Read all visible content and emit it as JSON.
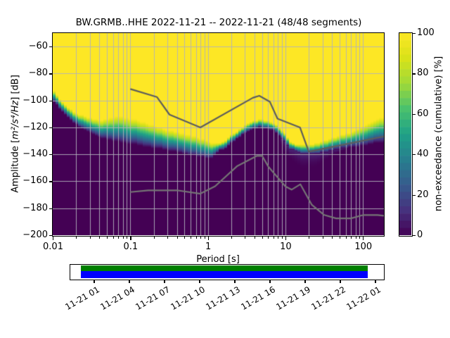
{
  "title": "BW.GRMB..HHE   2022-11-21 -- 2022-11-21  (48/48 segments)",
  "axes": {
    "xlabel": "Period [s]",
    "ylabel_prefix": "Amplitude [",
    "ylabel_math": "m²/s⁴/Hz",
    "ylabel_suffix": "] [dB]",
    "x_tick_labels": [
      "0.01",
      "0.1",
      "1",
      "10",
      "100"
    ],
    "y_tick_labels": [
      "−60",
      "−80",
      "−100",
      "−120",
      "−140",
      "−160",
      "−180",
      "−200"
    ]
  },
  "colorbar": {
    "label": "non-exceedance (cumulative) [%]",
    "tick_labels": [
      "0",
      "20",
      "40",
      "60",
      "80",
      "100"
    ]
  },
  "timeline": {
    "tick_labels": [
      "11-21 01",
      "11-21 04",
      "11-21 07",
      "11-21 10",
      "11-21 13",
      "11-21 16",
      "11-21 19",
      "11-21 22",
      "11-22 01"
    ],
    "green_color": "#008000",
    "blue_color": "#0000ff"
  },
  "chart_data": {
    "type": "heatmap",
    "title": "BW.GRMB..HHE   2022-11-21 -- 2022-11-21  (48/48 segments)",
    "xlabel": "Period [s]",
    "ylabel": "Amplitude [m²/s⁴/Hz] [dB]",
    "colorbar_label": "non-exceedance (cumulative) [%]",
    "x_scale": "log",
    "xlim": [
      0.01,
      186
    ],
    "ylim": [
      -200,
      -50
    ],
    "value_range_percent": [
      0,
      100
    ],
    "x_major_ticks": [
      0.01,
      0.1,
      1,
      10,
      100
    ],
    "y_major_ticks": [
      -60,
      -80,
      -100,
      -120,
      -140,
      -160,
      -180,
      -200
    ],
    "colorbar_ticks": [
      0,
      20,
      40,
      60,
      80,
      100
    ],
    "grid": true,
    "grid_color": "rgba(177,177,186,0.9)",
    "colormap_viridis_stops": [
      "#440154",
      "#46327e",
      "#365c8d",
      "#277f8e",
      "#1fa187",
      "#4ac16d",
      "#a0da39",
      "#d8e219",
      "#fde725"
    ],
    "yellow": "#fde725",
    "dark": "#440154",
    "cumulative_boundary": {
      "comment": "per period: dB where non-exceedance leaves 100% (top) and reaches 0% (bottom)",
      "periods": [
        0.01,
        0.0123,
        0.0152,
        0.0187,
        0.0245,
        0.035,
        0.0431,
        0.0532,
        0.0683,
        0.0895,
        0.11,
        0.136,
        0.167,
        0.206,
        0.254,
        0.313,
        0.428,
        0.585,
        0.8,
        1.1,
        1.35,
        1.67,
        2.05,
        2.52,
        3.1,
        3.82,
        4.71,
        5.8,
        7.15,
        8.27,
        9.79,
        11.3,
        13.4,
        16.6,
        19.6,
        24.2,
        29.8,
        38.4,
        49.4,
        64.8,
        88.6,
        121,
        150,
        186
      ],
      "top_db": [
        -91.8,
        -98.6,
        -104.3,
        -108.5,
        -111.1,
        -113.8,
        -114.8,
        -113.2,
        -111.7,
        -112.7,
        -113.8,
        -115.3,
        -116.9,
        -119.0,
        -120.6,
        -122.1,
        -123.7,
        -125.8,
        -127.9,
        -131.0,
        -132.0,
        -129.4,
        -125.3,
        -121.6,
        -118.0,
        -115.5,
        -113.8,
        -114.6,
        -117.0,
        -120.0,
        -124.2,
        -129.9,
        -132.0,
        -132.8,
        -133.1,
        -131.8,
        -130.2,
        -128.1,
        -125.8,
        -124.2,
        -121.1,
        -116.9,
        -113.8,
        -112.2
      ],
      "bottom_db": [
        -99.6,
        -105.9,
        -112.2,
        -116.9,
        -121.6,
        -125.8,
        -127.9,
        -129.4,
        -130.8,
        -132.0,
        -132.6,
        -133.6,
        -134.7,
        -135.7,
        -136.2,
        -137.6,
        -138.6,
        -140.9,
        -142.0,
        -143.6,
        -137.8,
        -135.7,
        -131.5,
        -127.4,
        -124.0,
        -121.5,
        -120.4,
        -121.0,
        -122.8,
        -126.0,
        -130.5,
        -136.2,
        -137.3,
        -139.7,
        -140.4,
        -140.2,
        -139.1,
        -137.8,
        -136.2,
        -135.2,
        -134.4,
        -132.6,
        -131.5,
        -131.0
      ],
      "tail_periods": [
        8.3,
        9.8,
        13.4,
        16.6,
        24.2,
        29.8,
        38.4,
        49.4,
        60
      ],
      "tail_db": [
        -128,
        -141,
        -148,
        -152,
        -151,
        -147,
        -142,
        -138.5,
        -136
      ]
    },
    "noise_models": {
      "high_noise_model": {
        "color": "#5d5d5d",
        "periods": [
          0.1,
          0.22,
          0.32,
          0.8,
          3.8,
          4.6,
          6.3,
          7.9,
          15.4,
          20.0,
          186
        ],
        "db": [
          -91.5,
          -97.4,
          -110.5,
          -120.0,
          -98.0,
          -96.5,
          -101.0,
          -113.5,
          -120.0,
          -138.0,
          -126.7
        ]
      },
      "low_noise_model": {
        "color": "#757575",
        "periods": [
          0.1,
          0.17,
          0.4,
          0.8,
          1.24,
          2.4,
          4.3,
          5.0,
          6.0,
          10.0,
          12.0,
          15.6,
          21.9,
          31.6,
          45.0,
          70.0,
          101.0,
          154.0,
          186
        ],
        "db": [
          -168.0,
          -166.7,
          -166.7,
          -169.2,
          -163.7,
          -148.6,
          -141.1,
          -141.1,
          -149.0,
          -163.8,
          -166.2,
          -162.2,
          -177.5,
          -185.0,
          -187.5,
          -187.5,
          -185.0,
          -185.0,
          -185.6
        ]
      }
    },
    "timeline_coverage": {
      "hour_ticks": [
        "11-21 01",
        "11-21 04",
        "11-21 07",
        "11-21 10",
        "11-21 13",
        "11-21 16",
        "11-21 19",
        "11-21 22",
        "11-22 01"
      ],
      "segments_used": "48/48"
    }
  }
}
